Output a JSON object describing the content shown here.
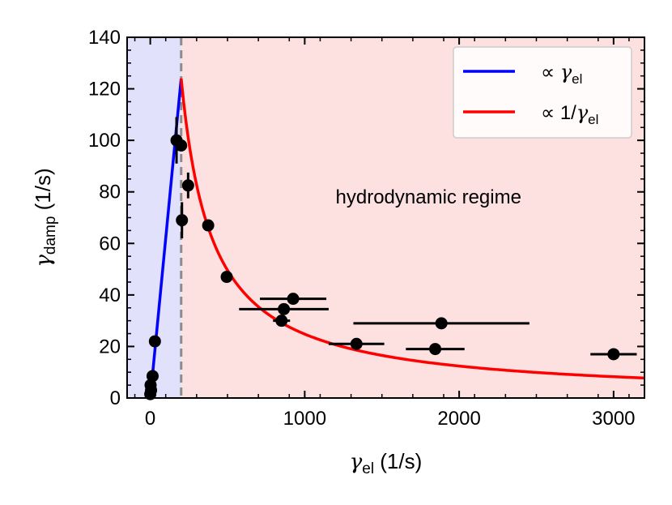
{
  "chart_data": {
    "type": "scatter",
    "xlabel_symbol": "γ",
    "xlabel_sub": "el",
    "xlabel_unit": " (1/s)",
    "ylabel_symbol": "γ",
    "ylabel_sub": "damp",
    "ylabel_unit": " (1/s)",
    "xlim": [
      -150,
      3200
    ],
    "ylim": [
      0,
      140
    ],
    "x_ticks": [
      0,
      1000,
      2000,
      3000
    ],
    "x_tick_labels": [
      "0",
      "1000",
      "2000",
      "3000"
    ],
    "y_ticks": [
      0,
      20,
      40,
      60,
      80,
      100,
      120,
      140
    ],
    "y_tick_labels": [
      "0",
      "20",
      "40",
      "60",
      "80",
      "100",
      "120",
      "140"
    ],
    "regions": [
      {
        "name": "low",
        "x_range": [
          -150,
          200
        ],
        "color": "#e1e1fb"
      },
      {
        "name": "hydrodynamic",
        "x_range": [
          200,
          3200
        ],
        "color": "#fde1e1"
      }
    ],
    "boundary_x": 200,
    "boundary_color": "#8c8c8c",
    "annotation": {
      "text": "hydrodynamic regime",
      "x": 1200,
      "y": 78
    },
    "fits": [
      {
        "name": "linear",
        "label_prefix": "∝ ",
        "label_symbol": "γ",
        "label_sub": "el",
        "color": "#0000ff",
        "x": [
          0,
          200
        ],
        "y": [
          0,
          124
        ]
      },
      {
        "name": "inverse",
        "label_prefix": "∝ 1/",
        "label_symbol": "γ",
        "label_sub": "el",
        "color": "#ff0000",
        "coef": 24800,
        "x_range": [
          200,
          3200
        ]
      }
    ],
    "points": [
      {
        "x": 0,
        "y": 1.5,
        "xerr": 0,
        "yerr": 0
      },
      {
        "x": 5,
        "y": 3,
        "xerr": 0,
        "yerr": 0
      },
      {
        "x": 2,
        "y": 5,
        "xerr": 0,
        "yerr": 0
      },
      {
        "x": 15,
        "y": 8.5,
        "xerr": 0,
        "yerr": 0
      },
      {
        "x": 30,
        "y": 22,
        "xerr": 0,
        "yerr": 0
      },
      {
        "x": 170,
        "y": 100,
        "xerr": 15,
        "yerr": 9
      },
      {
        "x": 200,
        "y": 98,
        "xerr": 12,
        "yerr": 0
      },
      {
        "x": 205,
        "y": 69,
        "xerr": 0,
        "yerr": 7
      },
      {
        "x": 245,
        "y": 82.5,
        "xerr": 0,
        "yerr": 5
      },
      {
        "x": 375,
        "y": 67,
        "xerr": 0,
        "yerr": 0
      },
      {
        "x": 495,
        "y": 47,
        "xerr": 25,
        "yerr": 0
      },
      {
        "x": 850,
        "y": 30,
        "xerr": 55,
        "yerr": 0
      },
      {
        "x": 865,
        "y": 34.5,
        "xerr": 290,
        "yerr": 0
      },
      {
        "x": 925,
        "y": 38.5,
        "xerr": 215,
        "yerr": 0
      },
      {
        "x": 1335,
        "y": 21,
        "xerr": 180,
        "yerr": 0
      },
      {
        "x": 1845,
        "y": 19,
        "xerr": 190,
        "yerr": 0
      },
      {
        "x": 1885,
        "y": 29,
        "xerr": 570,
        "yerr": 0
      },
      {
        "x": 3000,
        "y": 17,
        "xerr": 150,
        "yerr": 0
      }
    ]
  }
}
